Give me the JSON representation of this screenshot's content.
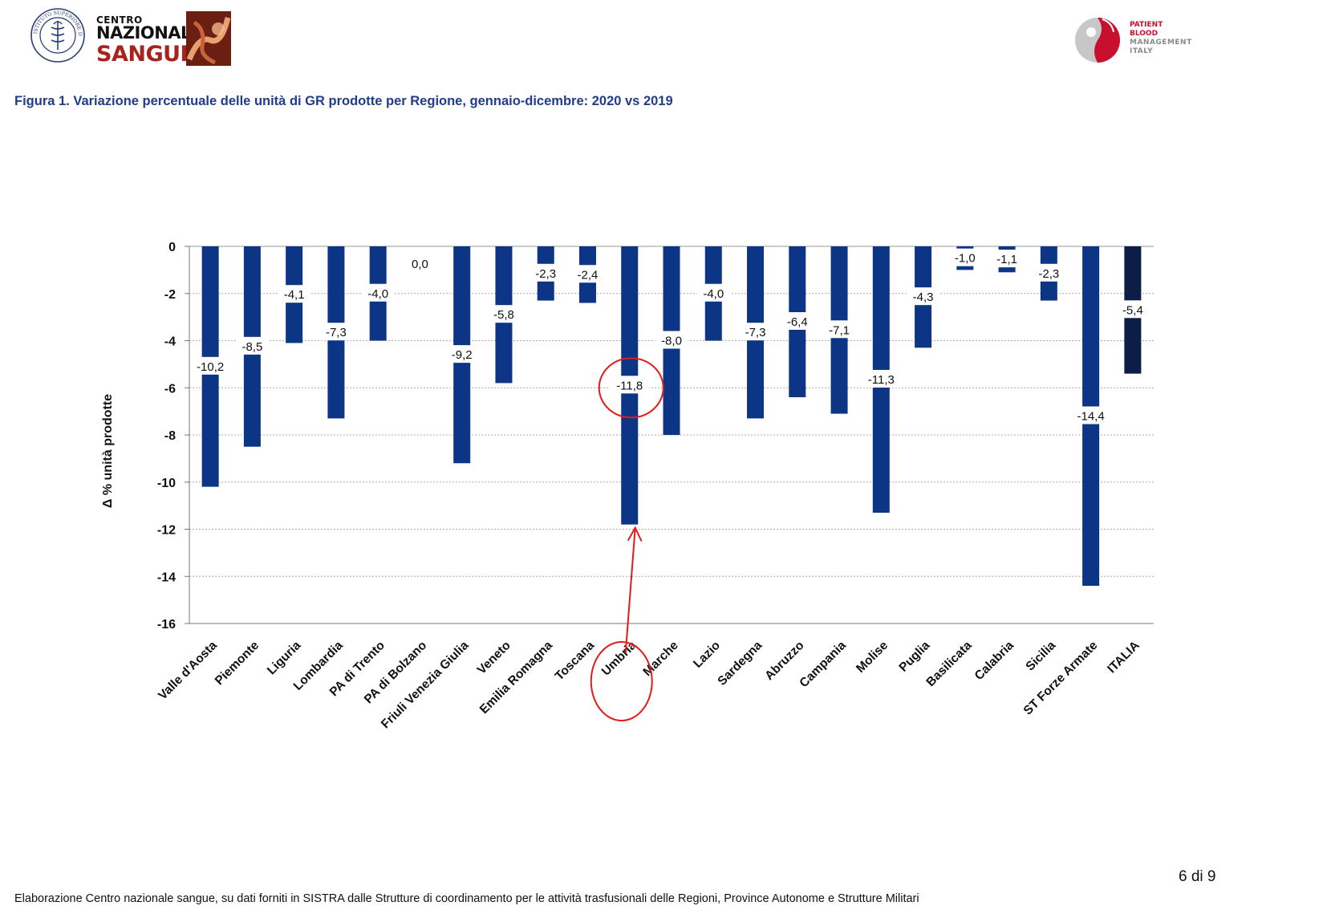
{
  "header": {
    "iss_logo_text": "ISTITUTO SUPERIORE DI SANITÀ",
    "cns_line1": "CENTRO",
    "cns_line2": "NAZIONALE",
    "cns_line3": "SANGUE",
    "pbm_line1": "PATIENT",
    "pbm_line2": "BLOOD",
    "pbm_line3": "MANAGEMENT",
    "pbm_line4": "ITALY"
  },
  "figure_title": "Figura 1. Variazione percentuale delle unità di GR prodotte per Regione, gennaio-dicembre: 2020 vs 2019",
  "chart_data": {
    "type": "bar",
    "title": "Figura 1. Variazione percentuale delle unità di GR prodotte per Regione, gennaio-dicembre: 2020 vs 2019",
    "xlabel": "",
    "ylabel": "Δ %  unità prodotte",
    "ylim": [
      -16,
      0
    ],
    "yticks": [
      0,
      -2,
      -4,
      -6,
      -8,
      -10,
      -12,
      -14,
      -16
    ],
    "grid": true,
    "categories": [
      "Valle d'Aosta",
      "Piemonte",
      "Liguria",
      "Lombardia",
      "PA di Trento",
      "PA di Bolzano",
      "Friuli Venezia Giulia",
      "Veneto",
      "Emilia Romagna",
      "Toscana",
      "Umbria",
      "Marche",
      "Lazio",
      "Sardegna",
      "Abruzzo",
      "Campania",
      "Molise",
      "Puglia",
      "Basilicata",
      "Calabria",
      "Sicilia",
      "ST Forze Armate",
      "ITALIA"
    ],
    "values": [
      -10.2,
      -8.5,
      -4.1,
      -7.3,
      -4.0,
      0.0,
      -9.2,
      -5.8,
      -2.3,
      -2.4,
      -11.8,
      -8.0,
      -4.0,
      -7.3,
      -6.4,
      -7.1,
      -11.3,
      -4.3,
      -1.0,
      -1.1,
      -2.3,
      -14.4,
      -5.4
    ],
    "data_labels": [
      "-10,2",
      "-8,5",
      "-4,1",
      "-7,3",
      "-4,0",
      "0,0",
      "-9,2",
      "-5,8",
      "-2,3",
      "-2,4",
      "-11,8",
      "-8,0",
      "-4,0",
      "-7,3",
      "-6,4",
      "-7,1",
      "-11,3",
      "-4,3",
      "-1,0",
      "-1,1",
      "-2,3",
      "-14,4",
      "-5,4"
    ],
    "bar_color": "#0d3585",
    "total_bar_color": "#0b1e45",
    "annotation": {
      "category": "Umbria",
      "color": "#e31b1b",
      "marks": "circle around data label, circle around axis label, arrow to bar end"
    }
  },
  "page_number": "6 di 9",
  "footer": "Elaborazione Centro nazionale sangue, su dati forniti in SISTRA dalle Strutture di coordinamento per le attività trasfusionali delle Regioni, Province Autonome e Strutture Militari"
}
